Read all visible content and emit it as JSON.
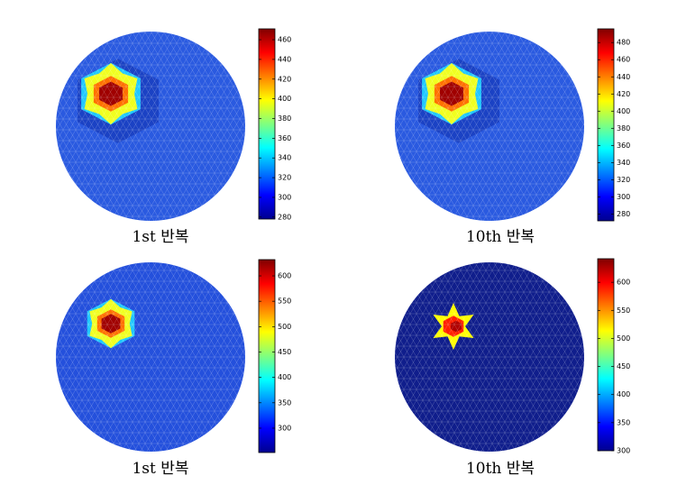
{
  "chart_data": [
    {
      "type": "heatmap",
      "caption": "1st 반복",
      "colorbar_lim": [
        278,
        471
      ],
      "colorbar_ticks": [
        280,
        300,
        320,
        340,
        360,
        380,
        400,
        420,
        440,
        460
      ]
    },
    {
      "type": "heatmap",
      "caption": "10th 반복",
      "colorbar_lim": [
        272,
        496
      ],
      "colorbar_ticks": [
        280,
        300,
        320,
        340,
        360,
        380,
        400,
        420,
        440,
        460,
        480
      ]
    },
    {
      "type": "heatmap",
      "caption": "1st 반복",
      "colorbar_lim": [
        252,
        632
      ],
      "colorbar_ticks": [
        300,
        350,
        400,
        450,
        500,
        550,
        600
      ]
    },
    {
      "type": "heatmap",
      "caption": "10th 반복",
      "colorbar_lim": [
        300,
        642
      ],
      "colorbar_ticks": [
        300,
        350,
        400,
        450,
        500,
        550,
        600
      ]
    }
  ]
}
